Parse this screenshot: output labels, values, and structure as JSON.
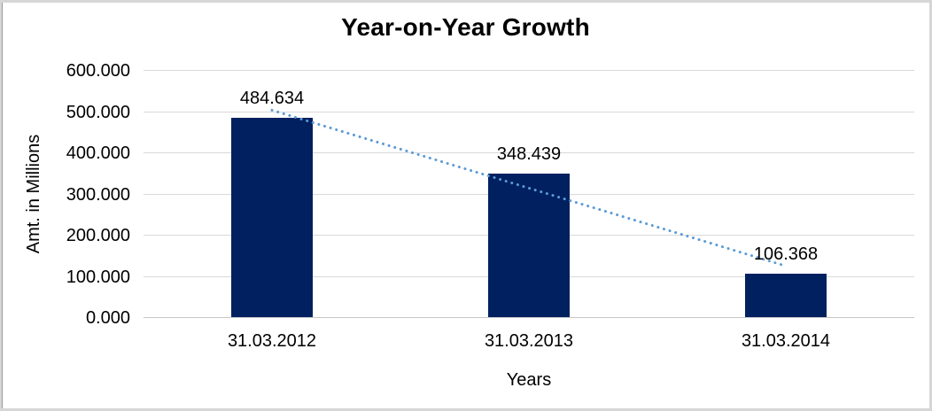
{
  "chart_data": {
    "type": "bar",
    "title": "Year-on-Year Growth",
    "xlabel": "Years",
    "ylabel": "Amt. in Millions",
    "categories": [
      "31.03.2012",
      "31.03.2013",
      "31.03.2014"
    ],
    "values": [
      484.634,
      348.439,
      106.368
    ],
    "data_labels": [
      "484.634",
      "348.439",
      "106.368"
    ],
    "ylim": [
      0,
      600
    ],
    "yticks": [
      {
        "value": 0,
        "label": "0.000"
      },
      {
        "value": 100,
        "label": "100.000"
      },
      {
        "value": 200,
        "label": "200.000"
      },
      {
        "value": 300,
        "label": "300.000"
      },
      {
        "value": 400,
        "label": "400.000"
      },
      {
        "value": 500,
        "label": "500.000"
      },
      {
        "value": 600,
        "label": "600.000"
      }
    ],
    "grid": true,
    "legend": "none",
    "trendline": {
      "type": "linear",
      "style": "dotted"
    },
    "colors": {
      "bar": "#002060",
      "trendline": "#5b9bd5",
      "gridline": "#d9d9d9",
      "axis_line": "#c6c6c6",
      "text": "#000000",
      "background": "#ffffff"
    }
  }
}
